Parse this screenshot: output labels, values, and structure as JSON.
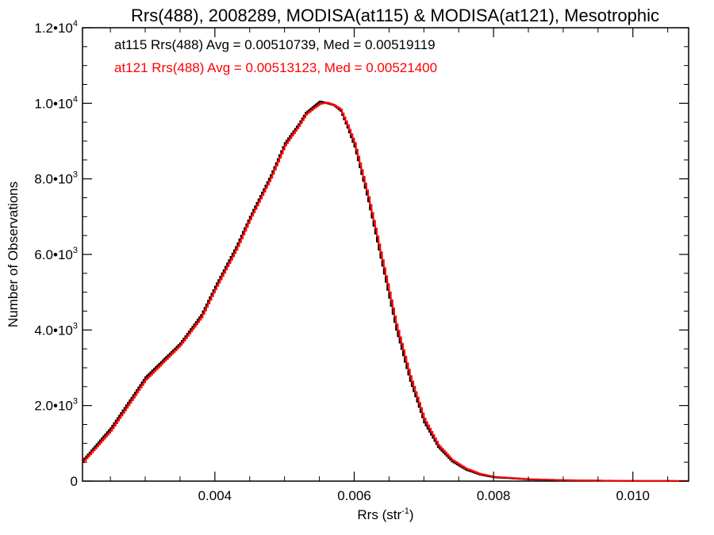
{
  "chart_data": {
    "type": "line",
    "title": "Rrs(488), 2008289, MODISA(at115) & MODISA(at121), Mesotrophic",
    "xlabel": "Rrs (str",
    "xlabel_sup": "-1",
    "xlabel_end": ")",
    "ylabel": "Number of Observations",
    "xlim": [
      0.0021,
      0.0108
    ],
    "ylim": [
      0,
      12000
    ],
    "grid": false,
    "x_ticks": [
      {
        "value": 0.004,
        "label": "0.004"
      },
      {
        "value": 0.006,
        "label": "0.006"
      },
      {
        "value": 0.008,
        "label": "0.008"
      },
      {
        "value": 0.01,
        "label": "0.010"
      }
    ],
    "y_ticks": [
      {
        "value": 0,
        "mant": "0",
        "exp": ""
      },
      {
        "value": 2000,
        "mant": "2.0•10",
        "exp": "3"
      },
      {
        "value": 4000,
        "mant": "4.0•10",
        "exp": "3"
      },
      {
        "value": 6000,
        "mant": "6.0•10",
        "exp": "3"
      },
      {
        "value": 8000,
        "mant": "8.0•10",
        "exp": "3"
      },
      {
        "value": 10000,
        "mant": "1.0•10",
        "exp": "4"
      },
      {
        "value": 12000,
        "mant": "1.2•10",
        "exp": "4"
      }
    ],
    "annotations": [
      {
        "text": "at115 Rrs(488) Avg = 0.00510739, Med = 0.00519119",
        "color": "#000000"
      },
      {
        "text": "at121 Rrs(488) Avg = 0.00513123, Med = 0.00521400",
        "color": "#ff0000"
      }
    ],
    "series": [
      {
        "color": "#000000",
        "x": [
          0.0021,
          0.0025,
          0.003,
          0.0035,
          0.0038,
          0.004,
          0.0043,
          0.0045,
          0.0048,
          0.005,
          0.0052,
          0.0053,
          0.0054,
          0.0055,
          0.0056,
          0.0057,
          0.0058,
          0.0059,
          0.006,
          0.0062,
          0.0064,
          0.0066,
          0.0068,
          0.007,
          0.0072,
          0.0074,
          0.0076,
          0.0078,
          0.008,
          0.0085,
          0.009,
          0.0095,
          0.01,
          0.0108
        ],
        "values": [
          550,
          1400,
          2750,
          3650,
          4400,
          5150,
          6200,
          7000,
          8100,
          8950,
          9450,
          9750,
          9900,
          10050,
          10000,
          9950,
          9800,
          9350,
          8850,
          7400,
          5700,
          4000,
          2650,
          1550,
          900,
          520,
          300,
          170,
          100,
          45,
          22,
          12,
          6,
          2
        ]
      },
      {
        "color": "#ff0000",
        "x": [
          0.0021,
          0.0025,
          0.003,
          0.0035,
          0.0038,
          0.004,
          0.0043,
          0.0045,
          0.0048,
          0.005,
          0.0052,
          0.0053,
          0.0054,
          0.0055,
          0.0056,
          0.0057,
          0.0058,
          0.0059,
          0.006,
          0.0062,
          0.0064,
          0.0066,
          0.0068,
          0.007,
          0.0072,
          0.0074,
          0.0076,
          0.0078,
          0.008,
          0.0085,
          0.009,
          0.0095,
          0.01,
          0.0108
        ],
        "values": [
          500,
          1330,
          2680,
          3600,
          4330,
          5080,
          6120,
          6930,
          8030,
          8880,
          9400,
          9700,
          9850,
          9980,
          10020,
          9960,
          9840,
          9420,
          8950,
          7520,
          5850,
          4150,
          2780,
          1650,
          960,
          560,
          330,
          190,
          115,
          52,
          26,
          14,
          7,
          2
        ]
      }
    ]
  }
}
